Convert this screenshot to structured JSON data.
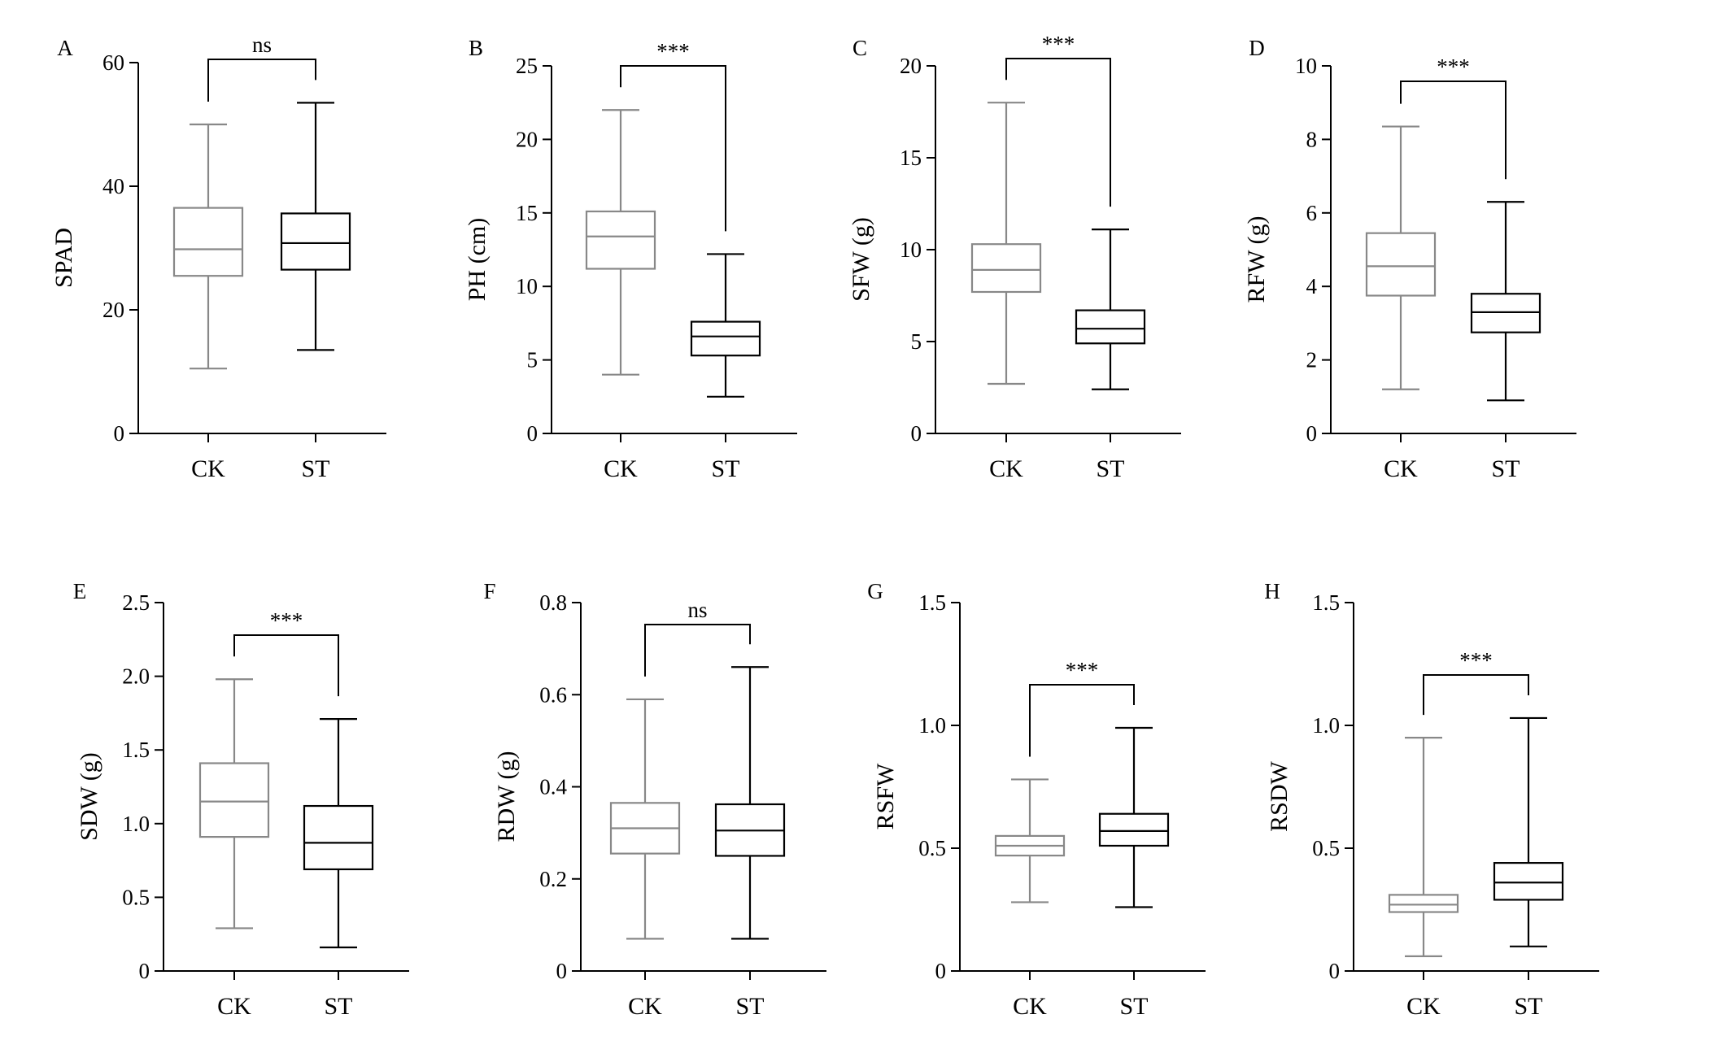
{
  "chart_data": [
    {
      "type": "box",
      "panel_label": "A",
      "ylabel": "SPAD",
      "ylim": [
        0,
        60
      ],
      "yticks": [
        0,
        20,
        40,
        60
      ],
      "tick_labels": [
        "0",
        "20",
        "40",
        "60"
      ],
      "categories": [
        "CK",
        "ST"
      ],
      "boxes": [
        {
          "category": "CK",
          "min": 10.5,
          "q1": 25.5,
          "median": 29.8,
          "q3": 36.5,
          "max": 50,
          "color": "#888888"
        },
        {
          "category": "ST",
          "min": 13.5,
          "q1": 26.5,
          "median": 30.8,
          "q3": 35.6,
          "max": 53.5,
          "color": "#000000"
        }
      ],
      "significance": "ns"
    },
    {
      "type": "box",
      "panel_label": "B",
      "ylabel": "PH (cm)",
      "ylim": [
        0,
        25
      ],
      "yticks": [
        0,
        5,
        10,
        15,
        20,
        25
      ],
      "tick_labels": [
        "0",
        "5",
        "10",
        "15",
        "20",
        "25"
      ],
      "categories": [
        "CK",
        "ST"
      ],
      "boxes": [
        {
          "category": "CK",
          "min": 4.0,
          "q1": 11.2,
          "median": 13.4,
          "q3": 15.1,
          "max": 22.0,
          "color": "#888888"
        },
        {
          "category": "ST",
          "min": 2.5,
          "q1": 5.3,
          "median": 6.6,
          "q3": 7.6,
          "max": 12.2,
          "color": "#000000"
        }
      ],
      "significance": "***"
    },
    {
      "type": "box",
      "panel_label": "C",
      "ylabel": "SFW (g)",
      "ylim": [
        0,
        20
      ],
      "yticks": [
        0,
        5,
        10,
        15,
        20
      ],
      "tick_labels": [
        "0",
        "5",
        "10",
        "15",
        "20"
      ],
      "categories": [
        "CK",
        "ST"
      ],
      "boxes": [
        {
          "category": "CK",
          "min": 2.7,
          "q1": 7.7,
          "median": 8.9,
          "q3": 10.3,
          "max": 18.0,
          "color": "#888888"
        },
        {
          "category": "ST",
          "min": 2.4,
          "q1": 4.9,
          "median": 5.7,
          "q3": 6.7,
          "max": 11.1,
          "color": "#000000"
        }
      ],
      "significance": "***"
    },
    {
      "type": "box",
      "panel_label": "D",
      "ylabel": "RFW (g)",
      "ylim": [
        0,
        10
      ],
      "yticks": [
        0,
        2,
        4,
        6,
        8,
        10
      ],
      "tick_labels": [
        "0",
        "2",
        "4",
        "6",
        "8",
        "10"
      ],
      "categories": [
        "CK",
        "ST"
      ],
      "boxes": [
        {
          "category": "CK",
          "min": 1.2,
          "q1": 3.75,
          "median": 4.55,
          "q3": 5.45,
          "max": 8.35,
          "color": "#888888"
        },
        {
          "category": "ST",
          "min": 0.9,
          "q1": 2.75,
          "median": 3.3,
          "q3": 3.8,
          "max": 6.3,
          "color": "#000000"
        }
      ],
      "significance": "***"
    },
    {
      "type": "box",
      "panel_label": "E",
      "ylabel": "SDW (g)",
      "ylim": [
        0,
        2.5
      ],
      "yticks": [
        0,
        0.5,
        1.0,
        1.5,
        2.0,
        2.5
      ],
      "tick_labels": [
        "0",
        "0.5",
        "1.0",
        "1.5",
        "2.0",
        "2.5"
      ],
      "categories": [
        "CK",
        "ST"
      ],
      "boxes": [
        {
          "category": "CK",
          "min": 0.29,
          "q1": 0.91,
          "median": 1.15,
          "q3": 1.41,
          "max": 1.98,
          "color": "#888888"
        },
        {
          "category": "ST",
          "min": 0.16,
          "q1": 0.69,
          "median": 0.87,
          "q3": 1.12,
          "max": 1.71,
          "color": "#000000"
        }
      ],
      "significance": "***"
    },
    {
      "type": "box",
      "panel_label": "F",
      "ylabel": "RDW (g)",
      "ylim": [
        0,
        0.8
      ],
      "yticks": [
        0,
        0.2,
        0.4,
        0.6,
        0.8
      ],
      "tick_labels": [
        "0",
        "0.2",
        "0.4",
        "0.6",
        "0.8"
      ],
      "categories": [
        "CK",
        "ST"
      ],
      "boxes": [
        {
          "category": "CK",
          "min": 0.07,
          "q1": 0.255,
          "median": 0.31,
          "q3": 0.365,
          "max": 0.59,
          "color": "#888888"
        },
        {
          "category": "ST",
          "min": 0.07,
          "q1": 0.25,
          "median": 0.305,
          "q3": 0.362,
          "max": 0.66,
          "color": "#000000"
        }
      ],
      "significance": "ns"
    },
    {
      "type": "box",
      "panel_label": "G",
      "ylabel": "RSFW",
      "ylim": [
        0,
        1.5
      ],
      "yticks": [
        0,
        0.5,
        1.0,
        1.5
      ],
      "tick_labels": [
        "0",
        "0.5",
        "1.0",
        "1.5"
      ],
      "categories": [
        "CK",
        "ST"
      ],
      "boxes": [
        {
          "category": "CK",
          "min": 0.28,
          "q1": 0.47,
          "median": 0.51,
          "q3": 0.55,
          "max": 0.78,
          "color": "#888888"
        },
        {
          "category": "ST",
          "min": 0.26,
          "q1": 0.51,
          "median": 0.57,
          "q3": 0.64,
          "max": 0.99,
          "color": "#000000"
        }
      ],
      "significance": "***"
    },
    {
      "type": "box",
      "panel_label": "H",
      "ylabel": "RSDW",
      "ylim": [
        0,
        1.5
      ],
      "yticks": [
        0,
        0.5,
        1.0,
        1.5
      ],
      "tick_labels": [
        "0",
        "0.5",
        "1.0",
        "1.5"
      ],
      "categories": [
        "CK",
        "ST"
      ],
      "boxes": [
        {
          "category": "CK",
          "min": 0.06,
          "q1": 0.24,
          "median": 0.27,
          "q3": 0.31,
          "max": 0.95,
          "color": "#888888"
        },
        {
          "category": "ST",
          "min": 0.1,
          "q1": 0.29,
          "median": 0.36,
          "q3": 0.44,
          "max": 1.03,
          "color": "#000000"
        }
      ],
      "significance": "***"
    }
  ]
}
